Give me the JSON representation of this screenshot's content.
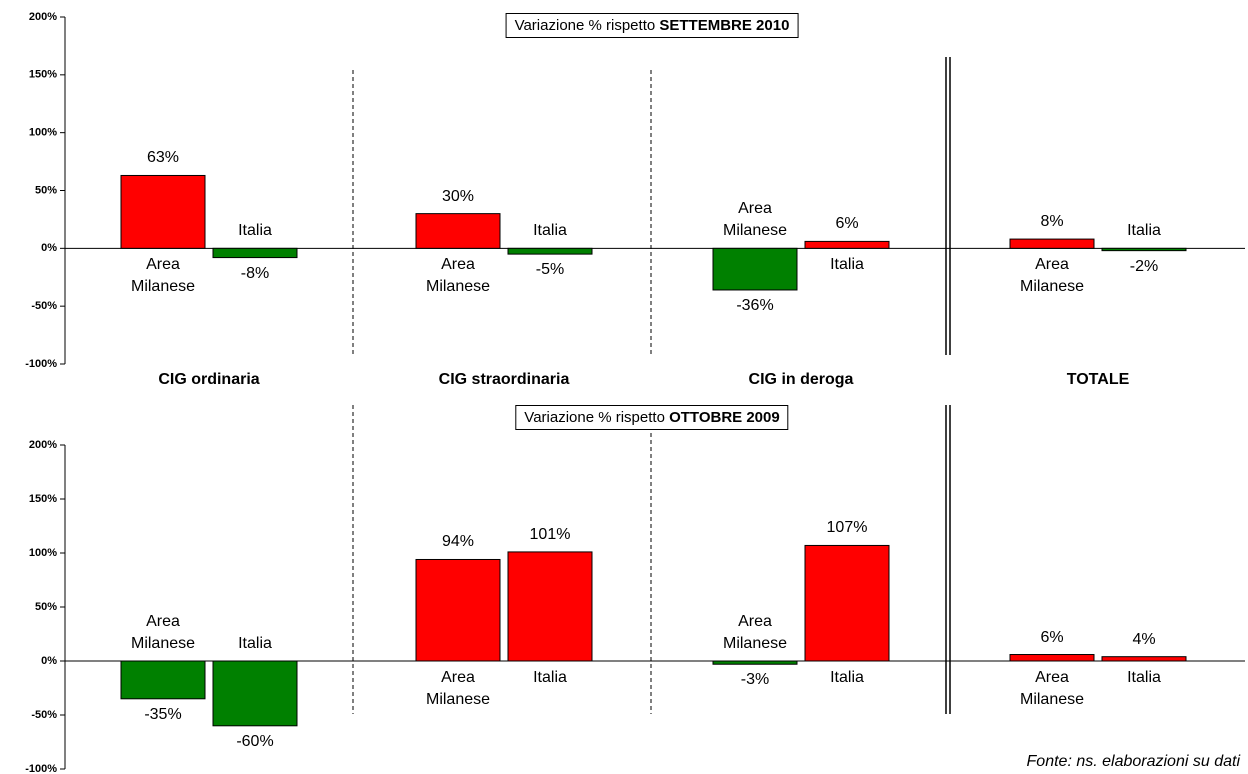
{
  "chart_data": [
    {
      "type": "bar",
      "title": "Variazione % rispetto",
      "title_emphasis": "SETTEMBRE 2010",
      "categories": [
        "CIG ordinaria",
        "CIG straordinaria",
        "CIG in deroga",
        "TOTALE"
      ],
      "series": [
        {
          "name": "Area Milanese",
          "values": [
            63,
            30,
            -36,
            8
          ],
          "value_labels": [
            "63%",
            "30%",
            "-36%",
            "8%"
          ]
        },
        {
          "name": "Italia",
          "values": [
            -8,
            -5,
            6,
            -2
          ],
          "value_labels": [
            "-8%",
            "-5%",
            "6%",
            "-2%"
          ]
        }
      ],
      "positive_color": "#ff0000",
      "negative_color": "#008000",
      "ylim": [
        -100,
        200
      ],
      "yticks": [
        {
          "value": -100,
          "label": "-100%"
        },
        {
          "value": -50,
          "label": "-50%"
        },
        {
          "value": 0,
          "label": "0%"
        },
        {
          "value": 50,
          "label": "50%"
        },
        {
          "value": 100,
          "label": "100%"
        },
        {
          "value": 150,
          "label": "150%"
        },
        {
          "value": 200,
          "label": "200%"
        }
      ]
    },
    {
      "type": "bar",
      "title": "Variazione % rispetto",
      "title_emphasis": "OTTOBRE 2009",
      "series": [
        {
          "name": "Area Milanese",
          "values": [
            -35,
            94,
            -3,
            6
          ],
          "value_labels": [
            "-35%",
            "94%",
            "-3%",
            "6%"
          ]
        },
        {
          "name": "Italia",
          "values": [
            -60,
            101,
            107,
            4
          ],
          "value_labels": [
            "-60%",
            "101%",
            "107%",
            "4%"
          ]
        }
      ],
      "positive_color": "#ff0000",
      "negative_color": "#008000",
      "ylim": [
        -100,
        200
      ],
      "yticks": [
        {
          "value": -100,
          "label": "-100%"
        },
        {
          "value": -50,
          "label": "-50%"
        },
        {
          "value": 0,
          "label": "0%"
        },
        {
          "value": 50,
          "label": "50%"
        },
        {
          "value": 100,
          "label": "100%"
        },
        {
          "value": 150,
          "label": "150%"
        },
        {
          "value": 200,
          "label": "200%"
        }
      ]
    }
  ],
  "source": "Fonte: ns. elaborazioni su dati"
}
